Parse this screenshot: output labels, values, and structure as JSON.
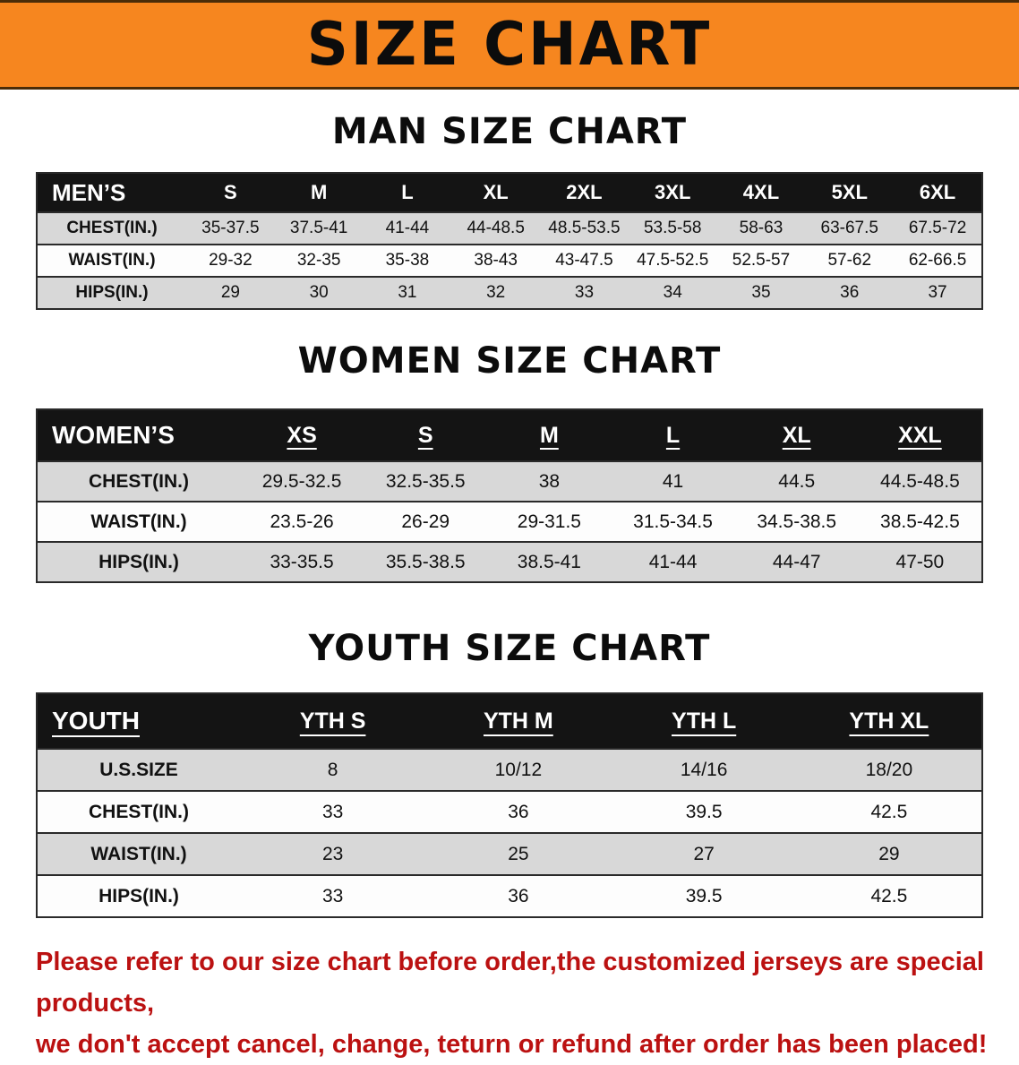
{
  "banner": {
    "title": "SIZE CHART",
    "bg_color": "#f6861f"
  },
  "men_section": {
    "heading": "MAN SIZE CHART",
    "table": {
      "header": [
        "MEN’S",
        "S",
        "M",
        "L",
        "XL",
        "2XL",
        "3XL",
        "4XL",
        "5XL",
        "6XL"
      ],
      "rows": [
        [
          "CHEST(IN.)",
          "35-37.5",
          "37.5-41",
          "41-44",
          "44-48.5",
          "48.5-53.5",
          "53.5-58",
          "58-63",
          "63-67.5",
          "67.5-72"
        ],
        [
          "WAIST(IN.)",
          "29-32",
          "32-35",
          "35-38",
          "38-43",
          "43-47.5",
          "47.5-52.5",
          "52.5-57",
          "57-62",
          "62-66.5"
        ],
        [
          "HIPS(IN.)",
          "29",
          "30",
          "31",
          "32",
          "33",
          "34",
          "35",
          "36",
          "37"
        ]
      ]
    }
  },
  "women_section": {
    "heading": "WOMEN SIZE CHART",
    "table": {
      "header": [
        "WOMEN’S",
        "XS",
        "S",
        "M",
        "L",
        "XL",
        "XXL"
      ],
      "rows": [
        [
          "CHEST(IN.)",
          "29.5-32.5",
          "32.5-35.5",
          "38",
          "41",
          "44.5",
          "44.5-48.5"
        ],
        [
          "WAIST(IN.)",
          "23.5-26",
          "26-29",
          "29-31.5",
          "31.5-34.5",
          "34.5-38.5",
          "38.5-42.5"
        ],
        [
          "HIPS(IN.)",
          "33-35.5",
          "35.5-38.5",
          "38.5-41",
          "41-44",
          "44-47",
          "47-50"
        ]
      ]
    }
  },
  "youth_section": {
    "heading": "YOUTH SIZE CHART",
    "table": {
      "header": [
        "YOUTH",
        "YTH S",
        "YTH M",
        "YTH L",
        "YTH XL"
      ],
      "rows": [
        [
          "U.S.SIZE",
          "8",
          "10/12",
          "14/16",
          "18/20"
        ],
        [
          "CHEST(IN.)",
          "33",
          "36",
          "39.5",
          "42.5"
        ],
        [
          "WAIST(IN.)",
          "23",
          "25",
          "27",
          "29"
        ],
        [
          "HIPS(IN.)",
          "33",
          "36",
          "39.5",
          "42.5"
        ]
      ]
    }
  },
  "disclaimer": {
    "color": "#bb1111",
    "line1": "Please refer to our size chart before order,the customized jerseys are special products,",
    "line2": "we don't accept cancel, change, teturn or refund after order has been placed!"
  }
}
